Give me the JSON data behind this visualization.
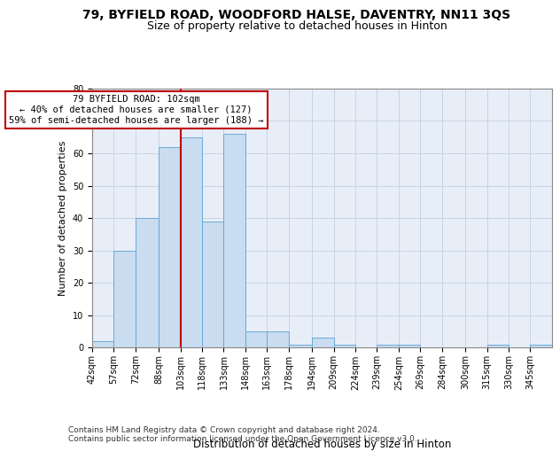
{
  "title1": "79, BYFIELD ROAD, WOODFORD HALSE, DAVENTRY, NN11 3QS",
  "title2": "Size of property relative to detached houses in Hinton",
  "xlabel": "Distribution of detached houses by size in Hinton",
  "ylabel": "Number of detached properties",
  "footer1": "Contains HM Land Registry data © Crown copyright and database right 2024.",
  "footer2": "Contains public sector information licensed under the Open Government Licence v3.0.",
  "annotation_line1": "79 BYFIELD ROAD: 102sqm",
  "annotation_line2": "← 40% of detached houses are smaller (127)",
  "annotation_line3": "59% of semi-detached houses are larger (188) →",
  "bin_edges": [
    42,
    57,
    72,
    88,
    103,
    118,
    133,
    148,
    163,
    178,
    194,
    209,
    224,
    239,
    254,
    269,
    284,
    300,
    315,
    330,
    345
  ],
  "bar_heights": [
    2,
    30,
    40,
    62,
    65,
    39,
    66,
    5,
    5,
    1,
    3,
    1,
    0,
    1,
    1,
    0,
    0,
    0,
    1,
    0,
    1
  ],
  "bar_color": "#c9dcf0",
  "bar_edge_color": "#6aaad4",
  "vline_x": 103,
  "vline_color": "#c00000",
  "annotation_box_edgecolor": "#c00000",
  "ylim": [
    0,
    80
  ],
  "yticks": [
    0,
    10,
    20,
    30,
    40,
    50,
    60,
    70,
    80
  ],
  "grid_color": "#c8d4e4",
  "background_color": "#e8eef8",
  "title1_fontsize": 10,
  "title2_fontsize": 9,
  "tick_fontsize": 7,
  "xlabel_fontsize": 8.5,
  "ylabel_fontsize": 8,
  "annotation_fontsize": 7.5,
  "footer_fontsize": 6.5
}
